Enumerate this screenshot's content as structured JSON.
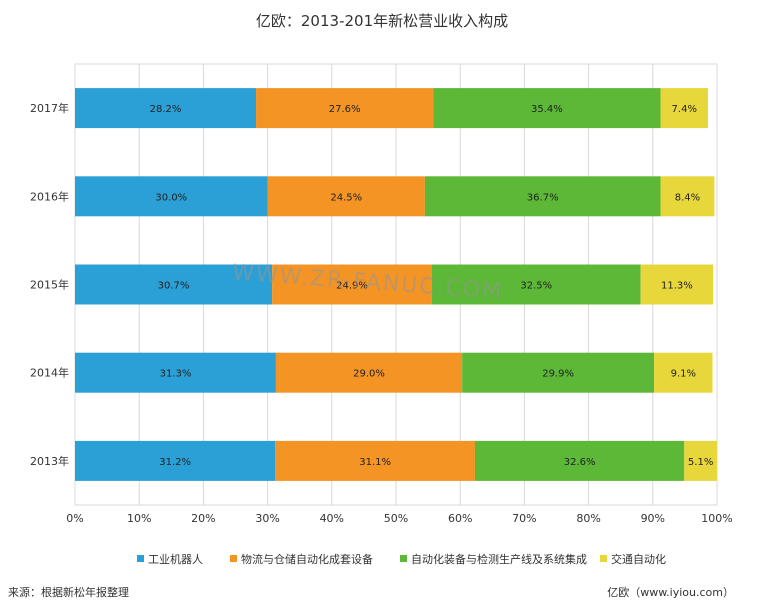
{
  "title": "亿欧：2013-201年新松营业收入构成",
  "watermark": "WWW.ZR-FANUC.COM",
  "source": "来源：根据新松年报整理",
  "credit": "亿欧（www.iyiou.com）",
  "colors": {
    "robot": "#2aa0d6",
    "logistics": "#f39425",
    "automation": "#5cb836",
    "traffic": "#e8d73a",
    "grid": "#d9d9d9"
  },
  "chart_data": {
    "type": "bar",
    "orientation": "horizontal",
    "stacked": "percent",
    "categories": [
      "2017年",
      "2016年",
      "2015年",
      "2014年",
      "2013年"
    ],
    "series": [
      {
        "name": "工业机器人",
        "colorKey": "robot",
        "values": [
          28.2,
          30.0,
          30.7,
          31.3,
          31.2
        ],
        "labels": [
          "28.2%",
          "30.0%",
          "30.7%",
          "31.3%",
          "31.2%"
        ]
      },
      {
        "name": "物流与仓储自动化成套设备",
        "colorKey": "logistics",
        "values": [
          27.6,
          24.5,
          24.9,
          29.0,
          31.1
        ],
        "labels": [
          "27.6%",
          "24.5%",
          "24.9%",
          "29.0%",
          "31.1%"
        ]
      },
      {
        "name": "自动化装备与检测生产线及系统集成",
        "colorKey": "automation",
        "values": [
          35.4,
          36.7,
          32.5,
          29.9,
          32.6
        ],
        "labels": [
          "35.4%",
          "36.7%",
          "32.5%",
          "29.9%",
          "32.6%"
        ]
      },
      {
        "name": "交通自动化",
        "colorKey": "traffic",
        "values": [
          7.4,
          8.4,
          11.3,
          9.1,
          5.1
        ],
        "labels": [
          "7.4%",
          "8.4%",
          "11.3%",
          "9.1%",
          "5.1%"
        ]
      }
    ],
    "xlim": [
      0,
      100
    ],
    "xticks": [
      "0%",
      "10%",
      "20%",
      "30%",
      "40%",
      "50%",
      "60%",
      "70%",
      "80%",
      "90%",
      "100%"
    ],
    "grid": true,
    "legend": "bottom"
  }
}
